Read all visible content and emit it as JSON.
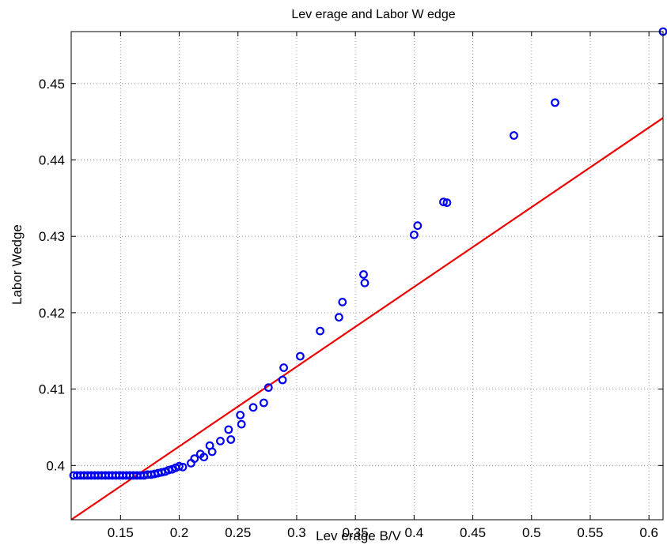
{
  "chart_data": {
    "type": "scatter",
    "title": "Lev erage and Labor W edge",
    "xlabel": "Lev erage B/V",
    "ylabel": "Labor Wedge",
    "xlim": [
      0.108,
      0.612
    ],
    "ylim": [
      0.3929,
      0.4568
    ],
    "xticks": [
      0.15,
      0.2,
      0.25,
      0.3,
      0.35,
      0.4,
      0.45,
      0.5,
      0.55,
      0.6
    ],
    "xtick_labels": [
      "0.15",
      "0.2",
      "0.25",
      "0.3",
      "0.35",
      "0.4",
      "0.45",
      "0.5",
      "0.55",
      "0.6"
    ],
    "yticks": [
      0.4,
      0.41,
      0.42,
      0.43,
      0.44,
      0.45
    ],
    "ytick_labels": [
      "0.4",
      "0.41",
      "0.42",
      "0.43",
      "0.44",
      "0.45"
    ],
    "grid": true,
    "colors": {
      "points": "#0000ee",
      "fit_line": "#ee0000"
    },
    "series": [
      {
        "kind": "points",
        "x": [
          0.11,
          0.113,
          0.116,
          0.119,
          0.122,
          0.125,
          0.128,
          0.131,
          0.134,
          0.137,
          0.14,
          0.143,
          0.146,
          0.149,
          0.152,
          0.155,
          0.158,
          0.161,
          0.164,
          0.167,
          0.17,
          0.173,
          0.176,
          0.179,
          0.182,
          0.185,
          0.188,
          0.191,
          0.194,
          0.197,
          0.2,
          0.203,
          0.21,
          0.213,
          0.218,
          0.221,
          0.226,
          0.228,
          0.235,
          0.242,
          0.244,
          0.252,
          0.253,
          0.263,
          0.272,
          0.276,
          0.288,
          0.289,
          0.303,
          0.32,
          0.336,
          0.339,
          0.357,
          0.358,
          0.4,
          0.403,
          0.425,
          0.428,
          0.485,
          0.52,
          0.612
        ],
        "y": [
          0.3987,
          0.3987,
          0.3987,
          0.3987,
          0.3987,
          0.3987,
          0.3987,
          0.3987,
          0.3987,
          0.3987,
          0.3987,
          0.3987,
          0.3987,
          0.3987,
          0.3987,
          0.3987,
          0.3987,
          0.3987,
          0.3987,
          0.3987,
          0.3987,
          0.3988,
          0.3988,
          0.3989,
          0.399,
          0.3991,
          0.3992,
          0.3994,
          0.3995,
          0.3997,
          0.3999,
          0.3998,
          0.4003,
          0.4009,
          0.4015,
          0.4011,
          0.4026,
          0.4018,
          0.4032,
          0.4047,
          0.4034,
          0.4066,
          0.4054,
          0.4076,
          0.4082,
          0.4102,
          0.4112,
          0.4128,
          0.4143,
          0.4176,
          0.4194,
          0.4214,
          0.425,
          0.4239,
          0.4302,
          0.4314,
          0.4345,
          0.4344,
          0.4432,
          0.4475,
          0.4568
        ]
      },
      {
        "kind": "line",
        "x": [
          0.108,
          0.612
        ],
        "y": [
          0.3929,
          0.4455
        ]
      }
    ]
  }
}
